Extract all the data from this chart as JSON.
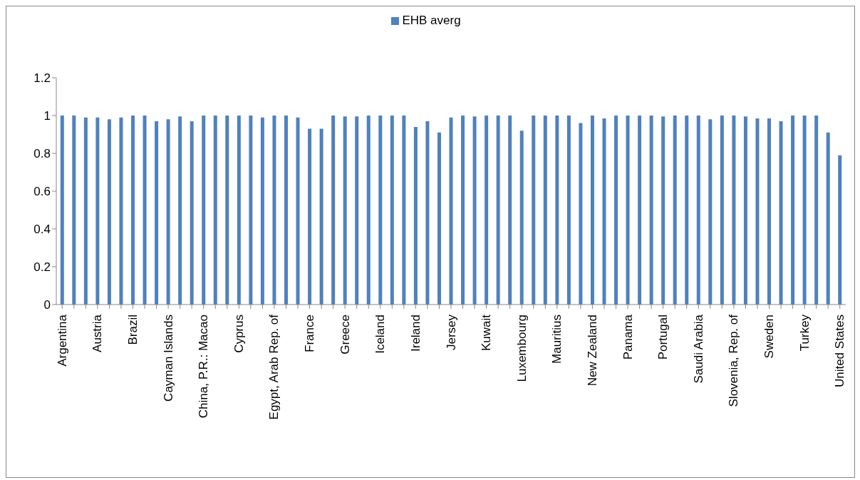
{
  "chart_data": {
    "type": "bar",
    "categories": [
      "Argentina",
      null,
      null,
      "Austria",
      null,
      null,
      "Brazil",
      null,
      null,
      "Cayman Islands",
      null,
      null,
      "China, P.R.: Macao",
      null,
      null,
      "Cyprus",
      null,
      null,
      "Egypt, Arab Rep. of",
      null,
      null,
      "France",
      null,
      null,
      "Greece",
      null,
      null,
      "Iceland",
      null,
      null,
      "Ireland",
      null,
      null,
      "Jersey",
      null,
      null,
      "Kuwait",
      null,
      null,
      "Luxembourg",
      null,
      null,
      "Mauritius",
      null,
      null,
      "New Zealand",
      null,
      null,
      "Panama",
      null,
      null,
      "Portugal",
      null,
      null,
      "Saudi Arabia",
      null,
      null,
      "Slovenia, Rep. of",
      null,
      null,
      "Sweden",
      null,
      null,
      "Turkey",
      null,
      null,
      "United States"
    ],
    "series": [
      {
        "name": "EHB averg",
        "color": "#4f81bd",
        "values": [
          1,
          1,
          0.99,
          0.99,
          0.98,
          0.99,
          1,
          1,
          0.97,
          0.98,
          0.995,
          0.97,
          1,
          1,
          1,
          1,
          1,
          0.99,
          1,
          1,
          0.99,
          0.93,
          0.93,
          1,
          0.995,
          0.995,
          1,
          1,
          1,
          1,
          0.94,
          0.97,
          0.91,
          0.99,
          1,
          0.995,
          1,
          1,
          1,
          0.92,
          1,
          1,
          1,
          1,
          0.96,
          1,
          0.985,
          1,
          1,
          1,
          1,
          0.995,
          1,
          1,
          1,
          0.98,
          1,
          1,
          0.995,
          0.985,
          0.985,
          0.97,
          1,
          1,
          1,
          0.91,
          0.79
        ]
      }
    ],
    "ylim": [
      0,
      1.2
    ],
    "yticks": [
      0,
      0.2,
      0.4,
      0.6,
      0.8,
      1,
      1.2
    ],
    "grid": false,
    "legend": "top"
  }
}
